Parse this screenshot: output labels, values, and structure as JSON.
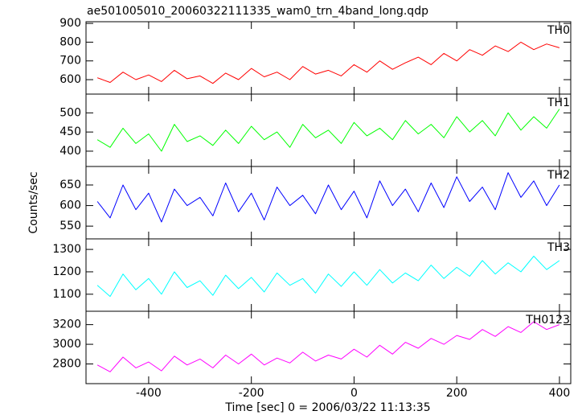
{
  "chart_data": [
    {
      "type": "line",
      "title": "ae501005010_20060322111335_wam0_trn_4band_long.qdp",
      "label": "TH0",
      "color": "#ff0000",
      "x": [
        -500,
        -475,
        -450,
        -425,
        -400,
        -375,
        -350,
        -325,
        -300,
        -275,
        -250,
        -225,
        -200,
        -175,
        -150,
        -125,
        -100,
        -75,
        -50,
        -25,
        0,
        25,
        50,
        75,
        100,
        125,
        150,
        175,
        200,
        225,
        250,
        275,
        300,
        325,
        350,
        375,
        400
      ],
      "values": [
        610,
        585,
        640,
        600,
        625,
        590,
        650,
        605,
        620,
        580,
        635,
        600,
        660,
        615,
        640,
        600,
        670,
        630,
        650,
        620,
        680,
        640,
        700,
        655,
        690,
        720,
        680,
        740,
        700,
        760,
        730,
        780,
        750,
        800,
        760,
        790,
        770
      ],
      "xlim": [
        -522,
        422
      ],
      "ylim": [
        523,
        909
      ],
      "yticks": [
        600,
        700,
        800,
        900
      ]
    },
    {
      "type": "line",
      "label": "TH1",
      "color": "#00ff00",
      "x": [
        -500,
        -475,
        -450,
        -425,
        -400,
        -375,
        -350,
        -325,
        -300,
        -275,
        -250,
        -225,
        -200,
        -175,
        -150,
        -125,
        -100,
        -75,
        -50,
        -25,
        0,
        25,
        50,
        75,
        100,
        125,
        150,
        175,
        200,
        225,
        250,
        275,
        300,
        325,
        350,
        375,
        400
      ],
      "values": [
        430,
        410,
        460,
        420,
        445,
        400,
        470,
        425,
        440,
        415,
        455,
        420,
        465,
        430,
        450,
        410,
        470,
        435,
        455,
        420,
        475,
        440,
        460,
        430,
        480,
        445,
        470,
        435,
        490,
        450,
        480,
        440,
        500,
        455,
        490,
        460,
        510
      ],
      "xlim": [
        -522,
        422
      ],
      "ylim": [
        360,
        549
      ],
      "yticks": [
        400,
        450,
        500
      ]
    },
    {
      "type": "line",
      "label": "TH2",
      "color": "#0000ff",
      "y_label": "Counts/sec",
      "x": [
        -500,
        -475,
        -450,
        -425,
        -400,
        -375,
        -350,
        -325,
        -300,
        -275,
        -250,
        -225,
        -200,
        -175,
        -150,
        -125,
        -100,
        -75,
        -50,
        -25,
        0,
        25,
        50,
        75,
        100,
        125,
        150,
        175,
        200,
        225,
        250,
        275,
        300,
        325,
        350,
        375,
        400
      ],
      "values": [
        610,
        570,
        650,
        590,
        630,
        560,
        640,
        600,
        620,
        575,
        655,
        585,
        630,
        565,
        645,
        600,
        625,
        580,
        650,
        590,
        635,
        570,
        660,
        600,
        640,
        585,
        655,
        595,
        670,
        610,
        645,
        590,
        680,
        620,
        660,
        600,
        650
      ],
      "xlim": [
        -522,
        422
      ],
      "ylim": [
        519,
        695
      ],
      "yticks": [
        550,
        600,
        650
      ]
    },
    {
      "type": "line",
      "label": "TH3",
      "color": "#00ffff",
      "x": [
        -500,
        -475,
        -450,
        -425,
        -400,
        -375,
        -350,
        -325,
        -300,
        -275,
        -250,
        -225,
        -200,
        -175,
        -150,
        -125,
        -100,
        -75,
        -50,
        -25,
        0,
        25,
        50,
        75,
        100,
        125,
        150,
        175,
        200,
        225,
        250,
        275,
        300,
        325,
        350,
        375,
        400
      ],
      "values": [
        1140,
        1090,
        1190,
        1120,
        1170,
        1100,
        1200,
        1130,
        1160,
        1095,
        1185,
        1125,
        1175,
        1110,
        1195,
        1140,
        1170,
        1105,
        1190,
        1135,
        1200,
        1140,
        1210,
        1150,
        1195,
        1160,
        1230,
        1170,
        1220,
        1180,
        1250,
        1190,
        1240,
        1200,
        1270,
        1210,
        1250
      ],
      "xlim": [
        -522,
        422
      ],
      "ylim": [
        1024,
        1347
      ],
      "yticks": [
        1100,
        1200,
        1300
      ]
    },
    {
      "type": "line",
      "label": "TH0123",
      "color": "#ff00ff",
      "x_label": "Time [sec] 0 = 2006/03/22 11:13:35",
      "x": [
        -500,
        -475,
        -450,
        -425,
        -400,
        -375,
        -350,
        -325,
        -300,
        -275,
        -250,
        -225,
        -200,
        -175,
        -150,
        -125,
        -100,
        -75,
        -50,
        -25,
        0,
        25,
        50,
        75,
        100,
        125,
        150,
        175,
        200,
        225,
        250,
        275,
        300,
        325,
        350,
        375,
        400
      ],
      "values": [
        2790,
        2720,
        2870,
        2760,
        2820,
        2730,
        2880,
        2790,
        2850,
        2760,
        2890,
        2800,
        2900,
        2790,
        2860,
        2810,
        2920,
        2830,
        2890,
        2850,
        2950,
        2870,
        2990,
        2900,
        3020,
        2960,
        3060,
        3000,
        3090,
        3050,
        3150,
        3080,
        3180,
        3120,
        3230,
        3150,
        3200
      ],
      "xlim": [
        -522,
        422
      ],
      "ylim": [
        2600,
        3336
      ],
      "yticks": [
        2800,
        3000,
        3200
      ],
      "xticks": [
        -400,
        -200,
        0,
        200,
        400
      ]
    }
  ]
}
